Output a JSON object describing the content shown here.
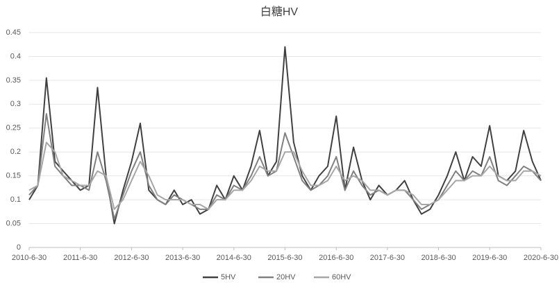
{
  "chart_data": {
    "type": "line",
    "title": "白糖HV",
    "x": [
      "2010-6-30",
      "2010-8-31",
      "2010-10-31",
      "2010-12-31",
      "2011-2-28",
      "2011-4-30",
      "2011-6-30",
      "2011-8-31",
      "2011-10-31",
      "2011-12-31",
      "2012-2-28",
      "2012-4-30",
      "2012-6-30",
      "2012-8-31",
      "2012-10-31",
      "2012-12-31",
      "2013-2-28",
      "2013-4-30",
      "2013-6-30",
      "2013-8-31",
      "2013-10-31",
      "2013-12-31",
      "2014-2-28",
      "2014-4-30",
      "2014-6-30",
      "2014-8-31",
      "2014-10-31",
      "2014-12-31",
      "2015-2-28",
      "2015-4-30",
      "2015-6-30",
      "2015-8-31",
      "2015-10-31",
      "2015-12-31",
      "2016-2-28",
      "2016-4-30",
      "2016-6-30",
      "2016-8-31",
      "2016-10-31",
      "2016-12-31",
      "2017-2-28",
      "2017-4-30",
      "2017-6-30",
      "2017-8-31",
      "2017-10-31",
      "2017-12-31",
      "2018-2-28",
      "2018-4-30",
      "2018-6-30",
      "2018-8-31",
      "2018-10-31",
      "2018-12-31",
      "2019-2-28",
      "2019-4-30",
      "2019-6-30",
      "2019-8-31",
      "2019-10-31",
      "2019-12-31",
      "2020-2-28",
      "2020-4-30",
      "2020-6-30"
    ],
    "series": [
      {
        "name": "5HV",
        "color": "#404040",
        "values": [
          0.1,
          0.13,
          0.355,
          0.18,
          0.16,
          0.14,
          0.12,
          0.13,
          0.335,
          0.15,
          0.05,
          0.12,
          0.18,
          0.26,
          0.12,
          0.1,
          0.09,
          0.12,
          0.09,
          0.1,
          0.07,
          0.08,
          0.13,
          0.1,
          0.15,
          0.12,
          0.17,
          0.245,
          0.15,
          0.18,
          0.42,
          0.22,
          0.15,
          0.12,
          0.15,
          0.17,
          0.275,
          0.12,
          0.21,
          0.14,
          0.1,
          0.13,
          0.11,
          0.12,
          0.14,
          0.1,
          0.07,
          0.08,
          0.11,
          0.15,
          0.2,
          0.14,
          0.19,
          0.17,
          0.255,
          0.15,
          0.14,
          0.16,
          0.245,
          0.18,
          0.14
        ]
      },
      {
        "name": "20HV",
        "color": "#808080",
        "values": [
          0.11,
          0.13,
          0.28,
          0.17,
          0.15,
          0.13,
          0.13,
          0.12,
          0.2,
          0.14,
          0.06,
          0.11,
          0.16,
          0.2,
          0.13,
          0.1,
          0.09,
          0.11,
          0.1,
          0.09,
          0.08,
          0.08,
          0.11,
          0.1,
          0.13,
          0.12,
          0.15,
          0.19,
          0.15,
          0.16,
          0.24,
          0.19,
          0.14,
          0.12,
          0.13,
          0.15,
          0.19,
          0.12,
          0.16,
          0.13,
          0.11,
          0.12,
          0.11,
          0.12,
          0.12,
          0.1,
          0.08,
          0.09,
          0.1,
          0.13,
          0.16,
          0.14,
          0.16,
          0.15,
          0.19,
          0.14,
          0.13,
          0.15,
          0.17,
          0.16,
          0.14
        ]
      },
      {
        "name": "60HV",
        "color": "#a6a6a6",
        "values": [
          0.12,
          0.13,
          0.22,
          0.2,
          0.15,
          0.14,
          0.13,
          0.13,
          0.16,
          0.15,
          0.08,
          0.1,
          0.14,
          0.18,
          0.15,
          0.11,
          0.1,
          0.1,
          0.1,
          0.09,
          0.09,
          0.08,
          0.1,
          0.1,
          0.12,
          0.12,
          0.14,
          0.17,
          0.16,
          0.16,
          0.2,
          0.2,
          0.16,
          0.13,
          0.13,
          0.14,
          0.17,
          0.14,
          0.15,
          0.14,
          0.12,
          0.12,
          0.11,
          0.12,
          0.12,
          0.11,
          0.09,
          0.09,
          0.1,
          0.12,
          0.14,
          0.14,
          0.15,
          0.15,
          0.17,
          0.15,
          0.14,
          0.14,
          0.16,
          0.16,
          0.15
        ]
      }
    ],
    "xlim": [
      "2010-6-30",
      "2020-6-30"
    ],
    "xticks": [
      "2010-6-30",
      "2011-6-30",
      "2012-6-30",
      "2013-6-30",
      "2014-6-30",
      "2015-6-30",
      "2016-6-30",
      "2017-6-30",
      "2018-6-30",
      "2019-6-30",
      "2020-6-30"
    ],
    "ylim": [
      0,
      0.45
    ],
    "yticks": [
      0,
      0.05,
      0.1,
      0.15,
      0.2,
      0.25,
      0.3,
      0.35,
      0.4,
      0.45
    ],
    "grid": true,
    "legend": "bottom"
  }
}
